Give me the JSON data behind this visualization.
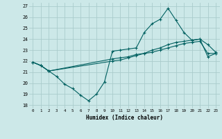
{
  "xlabel": "Humidex (Indice chaleur)",
  "xlim": [
    -0.5,
    23.5
  ],
  "ylim": [
    17.7,
    27.3
  ],
  "yticks": [
    18,
    19,
    20,
    21,
    22,
    23,
    24,
    25,
    26,
    27
  ],
  "xticks": [
    0,
    1,
    2,
    3,
    4,
    5,
    6,
    7,
    8,
    9,
    10,
    11,
    12,
    13,
    14,
    15,
    16,
    17,
    18,
    19,
    20,
    21,
    22,
    23
  ],
  "background_color": "#cce8e8",
  "grid_color": "#aacccc",
  "line_color": "#006060",
  "line1_x": [
    0,
    1,
    2,
    3,
    4,
    5,
    6,
    7,
    8,
    9,
    10,
    11,
    12,
    13,
    14,
    15,
    16,
    17,
    18,
    19,
    20,
    21,
    22,
    23
  ],
  "line1_y": [
    21.9,
    21.6,
    21.1,
    20.6,
    19.9,
    19.5,
    18.9,
    18.4,
    19.0,
    20.1,
    22.9,
    23.0,
    23.1,
    23.2,
    24.6,
    25.4,
    25.8,
    26.8,
    25.7,
    24.6,
    23.9,
    24.0,
    23.5,
    22.8
  ],
  "line2_x": [
    0,
    1,
    2,
    10,
    11,
    12,
    13,
    14,
    15,
    16,
    17,
    18,
    19,
    20,
    21,
    22,
    23
  ],
  "line2_y": [
    21.9,
    21.6,
    21.1,
    22.2,
    22.3,
    22.4,
    22.6,
    22.7,
    22.8,
    23.0,
    23.2,
    23.4,
    23.6,
    23.7,
    23.8,
    22.7,
    22.7
  ],
  "line3_x": [
    0,
    1,
    2,
    10,
    11,
    12,
    13,
    14,
    15,
    16,
    17,
    18,
    19,
    20,
    21,
    22,
    23
  ],
  "line3_y": [
    21.9,
    21.6,
    21.1,
    22.0,
    22.1,
    22.3,
    22.5,
    22.7,
    23.0,
    23.2,
    23.5,
    23.7,
    23.8,
    23.9,
    24.0,
    22.4,
    22.7
  ]
}
